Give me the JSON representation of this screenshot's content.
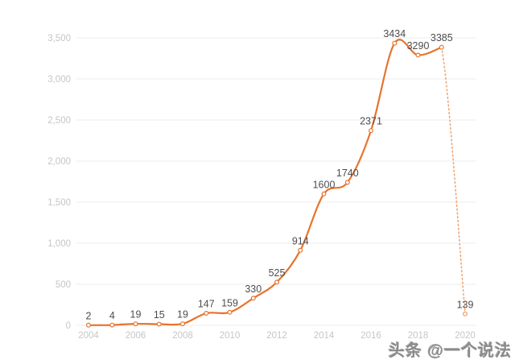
{
  "watermark": {
    "text": "头条 @一个说法"
  },
  "chart_data": {
    "type": "line",
    "title": "",
    "xlabel": "",
    "ylabel": "",
    "x": [
      2004,
      2005,
      2006,
      2007,
      2008,
      2009,
      2010,
      2011,
      2012,
      2013,
      2014,
      2015,
      2016,
      2017,
      2018,
      2019,
      2020
    ],
    "values": [
      2,
      4,
      19,
      15,
      19,
      147,
      159,
      330,
      525,
      914,
      1600,
      1740,
      2371,
      3434,
      3290,
      3385,
      139
    ],
    "point_labels": [
      "2",
      "4",
      "19",
      "15",
      "19",
      "147",
      "159",
      "330",
      "525",
      "914",
      "1600",
      "1740",
      "2371",
      "3434",
      "3290",
      "3385",
      "139"
    ],
    "x_ticks": [
      2004,
      2006,
      2008,
      2010,
      2012,
      2014,
      2016,
      2018,
      2020
    ],
    "x_tick_labels": [
      "2004",
      "2006",
      "2008",
      "2010",
      "2012",
      "2014",
      "2016",
      "2018",
      "2020"
    ],
    "y_ticks": [
      0,
      500,
      1000,
      1500,
      2000,
      2500,
      3000,
      3500
    ],
    "y_tick_labels": [
      "0",
      "500",
      "1,000",
      "1,500",
      "2,000",
      "2,500",
      "3,000",
      "3,500"
    ],
    "xlim": [
      2004,
      2020
    ],
    "ylim": [
      0,
      3500
    ],
    "grid": true,
    "legend_position": "none",
    "solid_segment_last_x": 2019,
    "dotted_segment": {
      "from_x": 2019,
      "to_x": 2020
    },
    "colors": {
      "line": "#e8732c",
      "dotted_line": "#f0a672",
      "marker_fill": "#ffffff",
      "marker_stroke": "#e8732c",
      "last_marker_stroke": "#ef9c60",
      "point_label": "#4d4d4f",
      "tick_label": "#c6c6c8",
      "grid": "#ececec"
    }
  }
}
